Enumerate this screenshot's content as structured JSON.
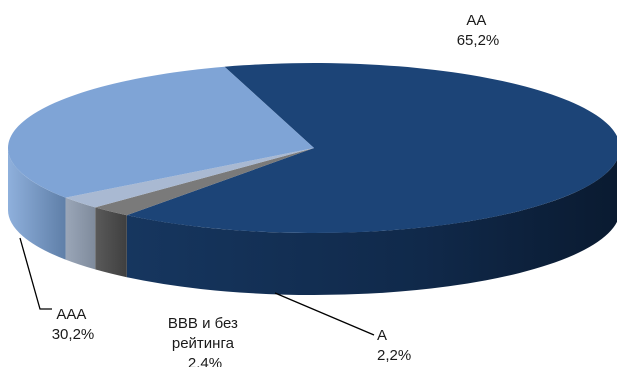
{
  "chart_data": {
    "type": "pie",
    "style": "3d",
    "title": "",
    "legend": "none",
    "slices": [
      {
        "name": "AA",
        "value": 65.2,
        "value_label": "65,2%",
        "color": "#1c4477"
      },
      {
        "name": "A",
        "value": 2.2,
        "value_label": "2,2%",
        "color": "#7a7a7a"
      },
      {
        "name": "BBB и без рейтинга",
        "value": 2.4,
        "value_label": "2,4%",
        "color": "#a9b9d2"
      },
      {
        "name": "AAA",
        "value": 30.2,
        "value_label": "30,2%",
        "color": "#7fa4d6"
      }
    ]
  }
}
